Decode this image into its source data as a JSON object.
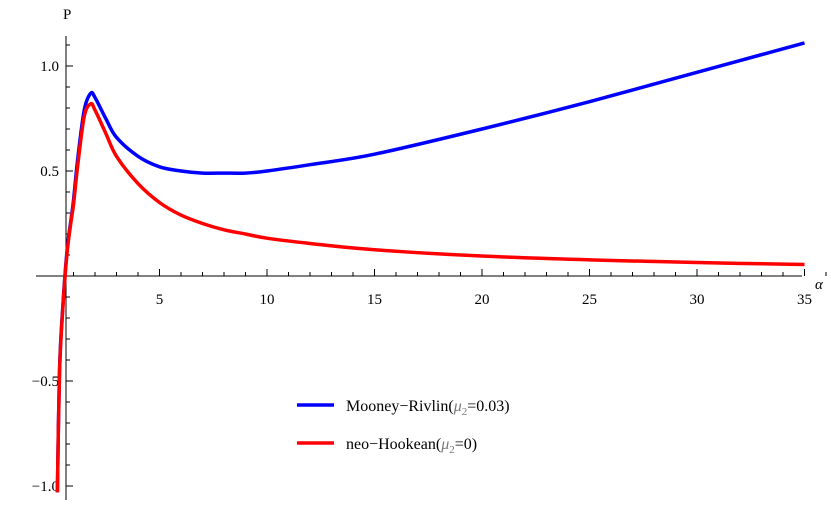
{
  "chart_data": {
    "type": "line",
    "xlabel": "α",
    "ylabel": "P",
    "xlim": [
      0,
      36
    ],
    "ylim": [
      -1.05,
      1.18
    ],
    "x_ticks": [
      5,
      10,
      15,
      20,
      25,
      30,
      35
    ],
    "x_tick_labels": [
      "5",
      "10",
      "15",
      "20",
      "25",
      "30",
      "35"
    ],
    "y_ticks": [
      -1.0,
      -0.5,
      0.5,
      1.0
    ],
    "y_tick_labels": [
      "−1.0",
      "−0.5",
      "0.5",
      "1.0"
    ],
    "grid": false,
    "legend_position": "bottom-center",
    "series": [
      {
        "name": "Mooney−Rivlin",
        "param": "=0.03",
        "color": "#0000ff",
        "x": [
          0.25,
          0.35,
          0.5,
          0.7,
          0.9,
          1.0,
          1.2,
          1.5,
          1.8,
          2.0,
          2.5,
          3.0,
          4.0,
          5.0,
          6.0,
          7.0,
          8.0,
          9.0,
          10.0,
          12.0,
          15.0,
          20.0,
          25.0,
          30.0,
          35.0
        ],
        "y": [
          -1.03,
          -0.45,
          -0.15,
          0.12,
          0.28,
          0.36,
          0.56,
          0.79,
          0.87,
          0.85,
          0.75,
          0.66,
          0.57,
          0.52,
          0.5,
          0.49,
          0.49,
          0.49,
          0.5,
          0.53,
          0.58,
          0.7,
          0.83,
          0.97,
          1.11
        ]
      },
      {
        "name": "neo−Hookean",
        "param": "=0",
        "color": "#ff0000",
        "x": [
          0.25,
          0.35,
          0.5,
          0.7,
          0.9,
          1.0,
          1.2,
          1.5,
          1.8,
          2.0,
          2.5,
          3.0,
          4.0,
          5.0,
          6.0,
          7.0,
          8.0,
          9.0,
          10.0,
          12.0,
          15.0,
          20.0,
          25.0,
          30.0,
          35.0
        ],
        "y": [
          -1.03,
          -0.46,
          -0.16,
          0.11,
          0.27,
          0.34,
          0.53,
          0.76,
          0.82,
          0.79,
          0.68,
          0.57,
          0.44,
          0.35,
          0.29,
          0.25,
          0.22,
          0.2,
          0.18,
          0.155,
          0.125,
          0.095,
          0.077,
          0.064,
          0.055
        ]
      }
    ]
  },
  "legend": {
    "greek": "μ",
    "subscript": "2"
  }
}
